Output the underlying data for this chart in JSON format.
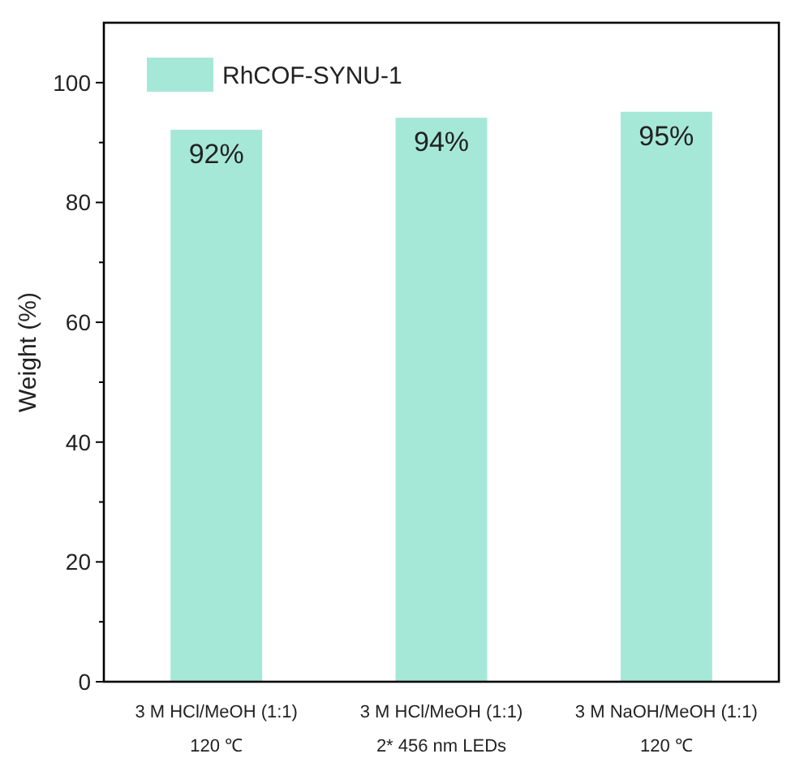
{
  "chart_data": {
    "type": "bar",
    "ylabel": "Weight (%)",
    "categories": [
      "3 M HCl/MeOH (1:1)\n120 ℃",
      "3 M HCl/MeOH (1:1)\n2* 456 nm LEDs",
      "3 M NaOH/MeOH (1:1)\n120 ℃"
    ],
    "series": [
      {
        "name": "RhCOF-SYNU-1",
        "color": "#a6e8d8",
        "values": [
          92,
          94,
          95
        ],
        "value_labels": [
          "92%",
          "94%",
          "95%"
        ]
      }
    ],
    "ylim": [
      0,
      110
    ],
    "yticks": [
      0,
      {
        "value": 10,
        "label": null
      },
      20,
      {
        "value": 30,
        "label": null
      },
      40,
      {
        "value": 50,
        "label": null
      },
      60,
      {
        "value": 70,
        "label": null
      },
      80,
      {
        "value": 90,
        "label": null
      },
      100
    ],
    "legend": "top left",
    "grid": false
  }
}
